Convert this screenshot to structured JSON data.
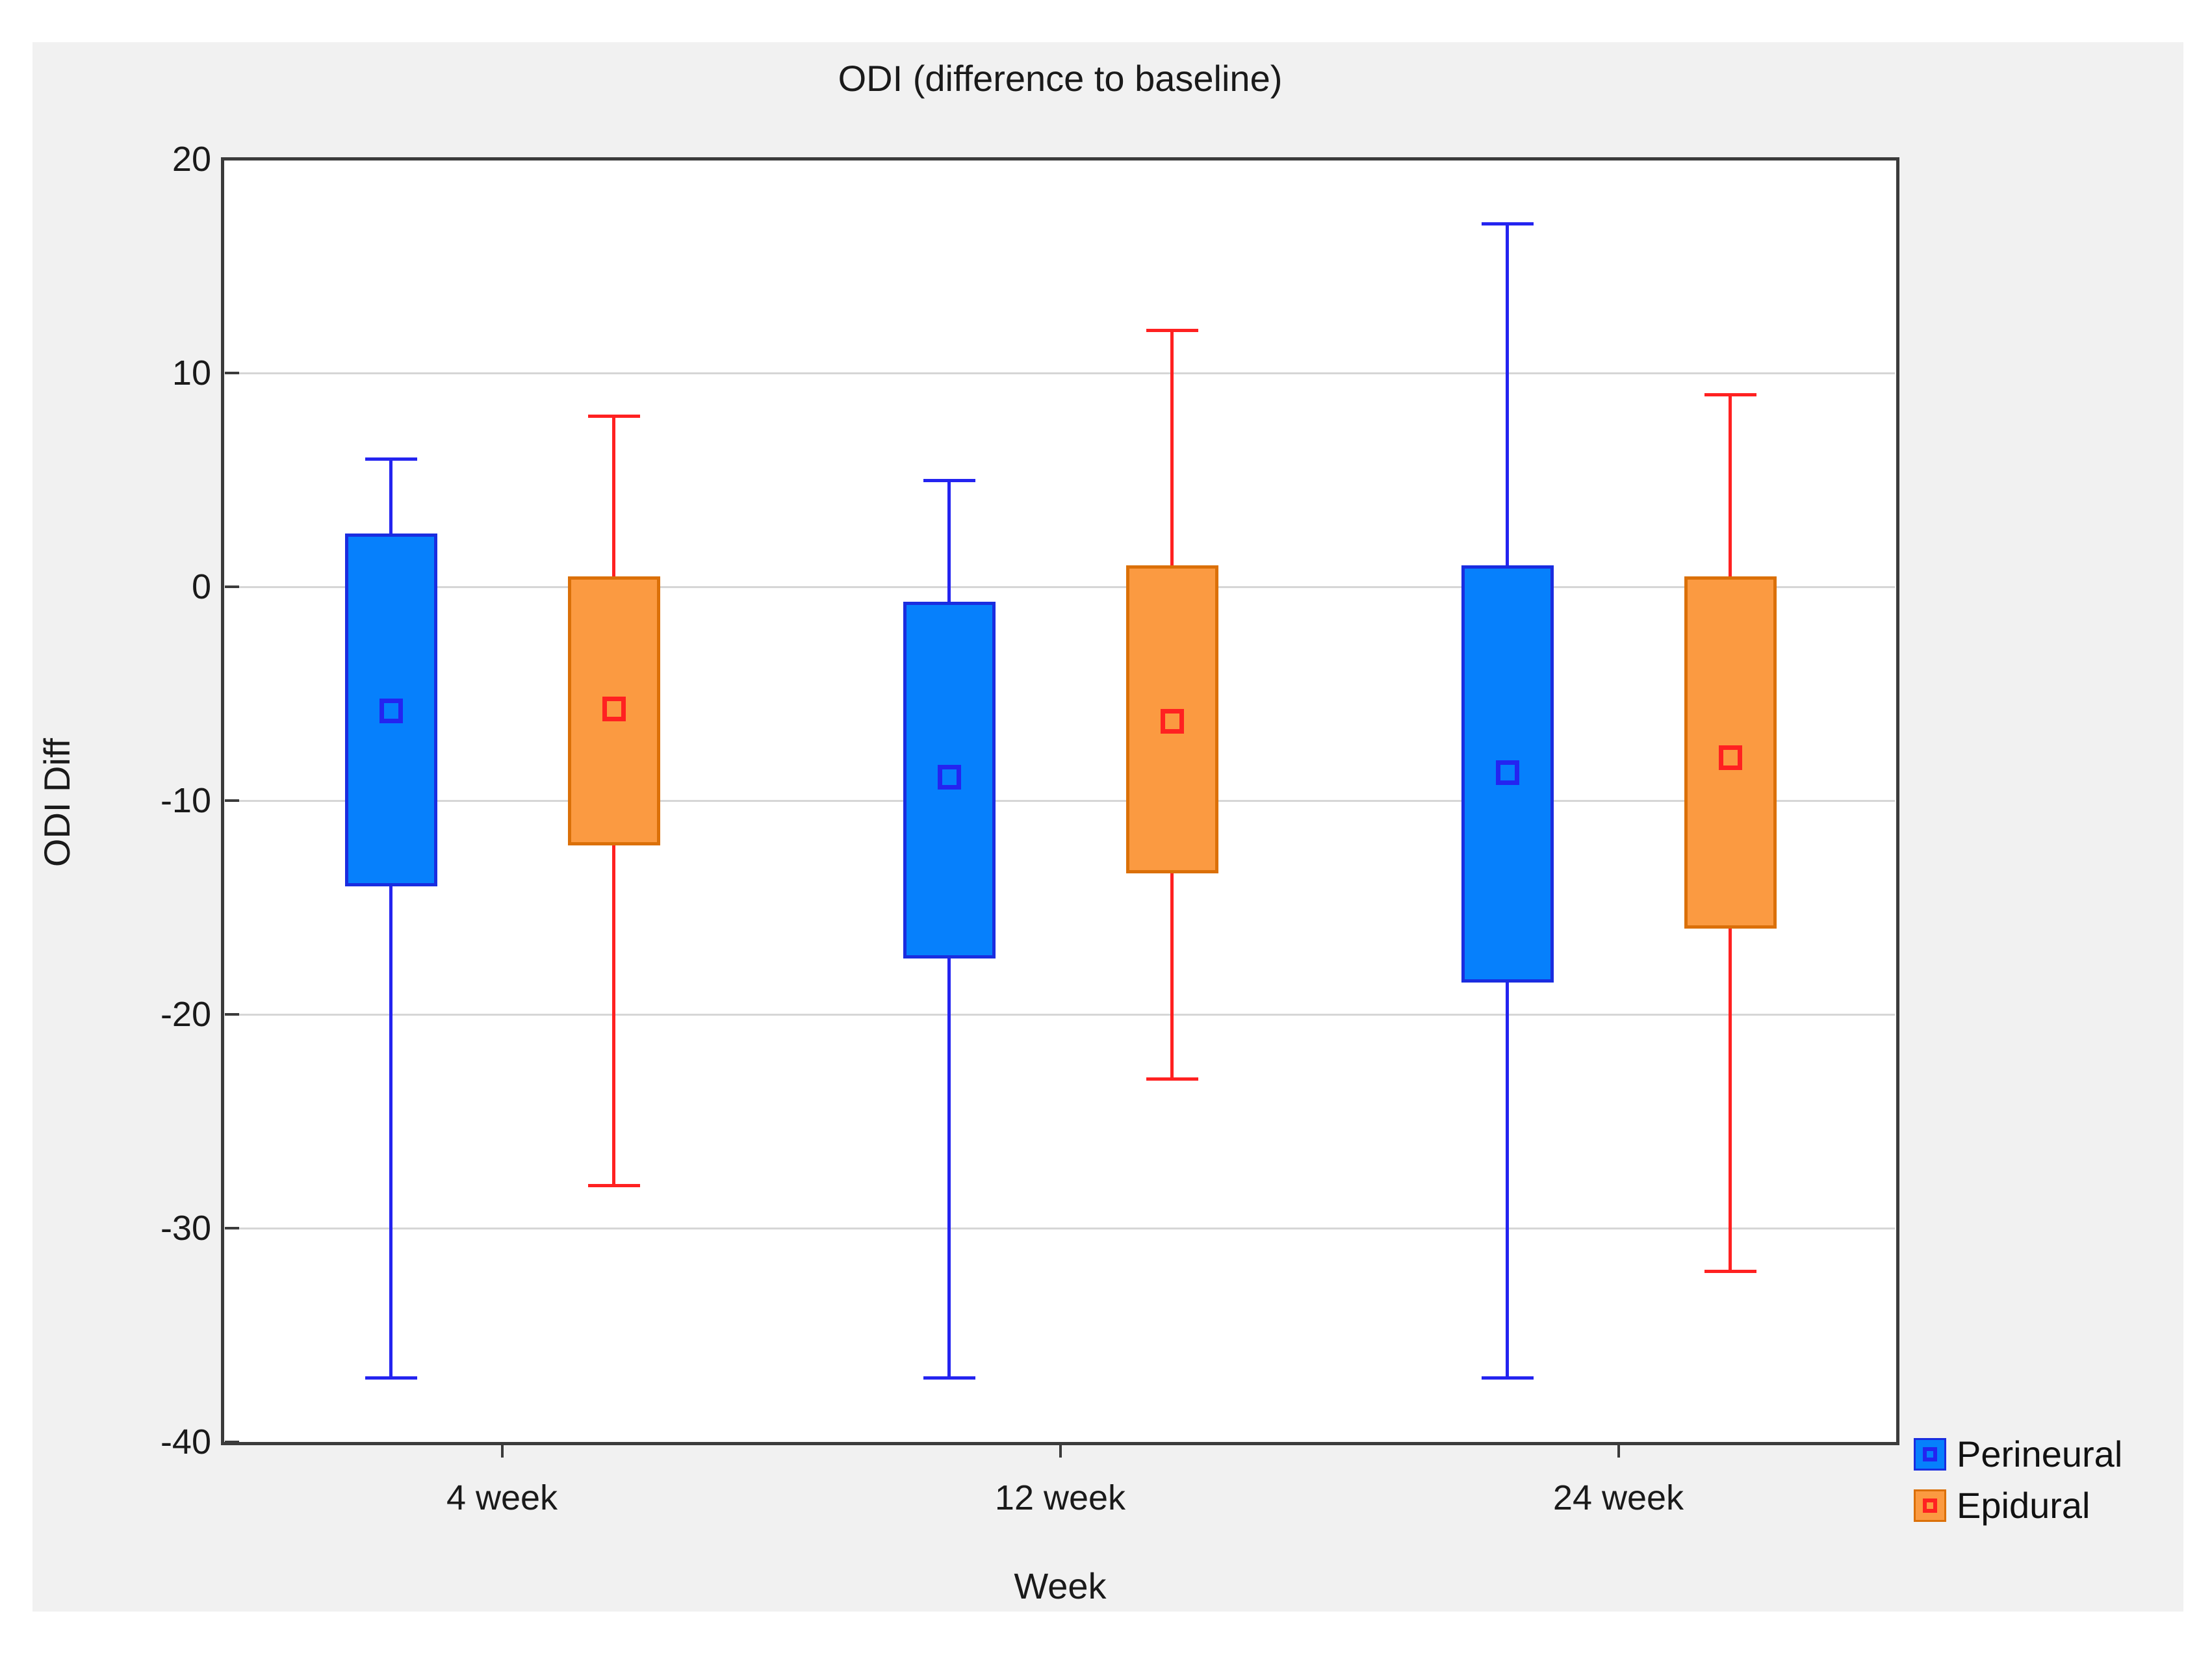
{
  "figure": {
    "background_color": "#f1f1f1",
    "plot_background_color": "#ffffff",
    "frame_color": "#3b3b3b",
    "gridline_color": "#d6d6d6"
  },
  "chart_data": {
    "type": "boxplot",
    "title": "ODI (difference to baseline)",
    "xlabel": "Week",
    "ylabel": "ODI Diff",
    "categories": [
      "4 week",
      "12 week",
      "24 week"
    ],
    "ylim": [
      -40,
      20
    ],
    "yticks": [
      20,
      10,
      0,
      -10,
      -20,
      -30,
      -40
    ],
    "grid": "horizontal-only",
    "legend_position": "bottom-right",
    "series": [
      {
        "name": "Perineural",
        "box_fill": "#0680fc",
        "box_edge": "#1a2de0",
        "line_color": "#2424f0",
        "boxes": [
          {
            "category": "4 week",
            "whisker_high": 6,
            "q3": 2.5,
            "mid": -5.8,
            "q1": -14.0,
            "whisker_low": -37
          },
          {
            "category": "12 week",
            "whisker_high": 5,
            "q3": -0.7,
            "mid": -8.9,
            "q1": -17.4,
            "whisker_low": -37
          },
          {
            "category": "24 week",
            "whisker_high": 17,
            "q3": 1.0,
            "mid": -8.7,
            "q1": -18.5,
            "whisker_low": -37
          }
        ]
      },
      {
        "name": "Epidural",
        "box_fill": "#fb9a41",
        "box_edge": "#db7008",
        "line_color": "#ff2121",
        "boxes": [
          {
            "category": "4 week",
            "whisker_high": 8,
            "q3": 0.5,
            "mid": -5.7,
            "q1": -12.1,
            "whisker_low": -28
          },
          {
            "category": "12 week",
            "whisker_high": 12,
            "q3": 1.0,
            "mid": -6.3,
            "q1": -13.4,
            "whisker_low": -23
          },
          {
            "category": "24 week",
            "whisker_high": 9,
            "q3": 0.5,
            "mid": -8.0,
            "q1": -16.0,
            "whisker_low": -32
          }
        ]
      }
    ]
  }
}
